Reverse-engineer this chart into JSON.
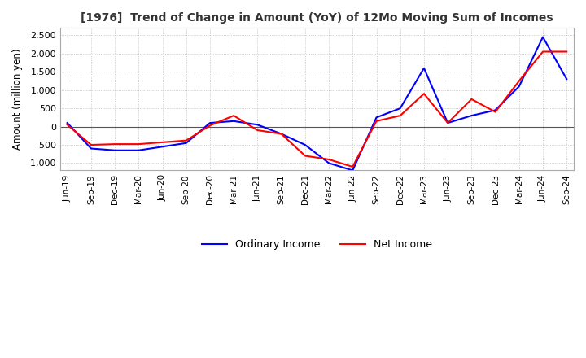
{
  "title": "[1976]  Trend of Change in Amount (YoY) of 12Mo Moving Sum of Incomes",
  "ylabel": "Amount (million yen)",
  "x_labels": [
    "Jun-19",
    "Sep-19",
    "Dec-19",
    "Mar-20",
    "Jun-20",
    "Sep-20",
    "Dec-20",
    "Mar-21",
    "Jun-21",
    "Sep-21",
    "Dec-21",
    "Mar-22",
    "Jun-22",
    "Sep-22",
    "Dec-22",
    "Mar-23",
    "Jun-23",
    "Sep-23",
    "Dec-23",
    "Mar-24",
    "Jun-24",
    "Sep-24"
  ],
  "ordinary_income": [
    100,
    -600,
    -650,
    -650,
    -550,
    -450,
    100,
    150,
    50,
    -200,
    -500,
    -1000,
    -1200,
    250,
    500,
    1600,
    100,
    300,
    450,
    1100,
    2450,
    1300
  ],
  "net_income": [
    50,
    -500,
    -480,
    -480,
    -430,
    -380,
    30,
    300,
    -100,
    -200,
    -800,
    -900,
    -1100,
    150,
    300,
    900,
    100,
    750,
    400,
    1250,
    2050,
    2050
  ],
  "ordinary_color": "#0000ff",
  "net_color": "#ff0000",
  "ylim": [
    -1200,
    2700
  ],
  "yticks": [
    -1000,
    -500,
    0,
    500,
    1000,
    1500,
    2000,
    2500
  ],
  "grid_color": "#aaaaaa",
  "background_color": "#ffffff",
  "legend_labels": [
    "Ordinary Income",
    "Net Income"
  ]
}
